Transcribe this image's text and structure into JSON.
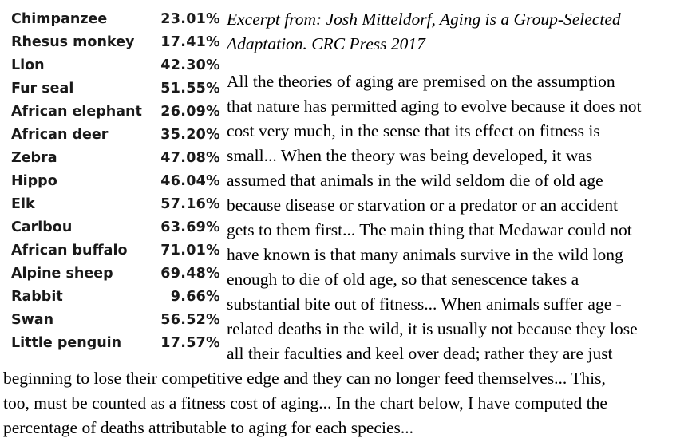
{
  "species_table": [
    {
      "name": "Chimpanzee",
      "percent": "23.01%"
    },
    {
      "name": "Rhesus monkey",
      "percent": "17.41%"
    },
    {
      "name": "Lion",
      "percent": "42.30%"
    },
    {
      "name": "Fur seal",
      "percent": "51.55%"
    },
    {
      "name": "African elephant",
      "percent": "26.09%"
    },
    {
      "name": "African deer",
      "percent": "35.20%"
    },
    {
      "name": "Zebra",
      "percent": "47.08%"
    },
    {
      "name": "Hippo",
      "percent": "46.04%"
    },
    {
      "name": "Elk",
      "percent": "57.16%"
    },
    {
      "name": "Caribou",
      "percent": "63.69%"
    },
    {
      "name": "African buffalo",
      "percent": "71.01%"
    },
    {
      "name": "Alpine sheep",
      "percent": "69.48%"
    },
    {
      "name": "Rabbit",
      "percent": "9.66%"
    },
    {
      "name": "Swan",
      "percent": "56.52%"
    },
    {
      "name": "Little penguin",
      "percent": "17.57%"
    }
  ],
  "citation": "Excerpt from: Josh Mitteldorf, Aging is a Group-Selected Adaptation. CRC Press 2017",
  "excerpt_lines": [
    "All the theories of aging are premised on the assumption",
    "that nature has permitted aging to evolve because it does not",
    "cost very much, in the sense that its effect on fitness is",
    "small... When the theory was being developed, it was",
    "assumed that animals in the wild seldom die of old age",
    "because disease or starvation or a predator or an accident",
    "gets to them first... The main thing that Medawar could not",
    "have known is that many animals survive in the wild long",
    "enough to die of old age, so that senescence takes a",
    "substantial bite out of fitness... When animals suffer age -",
    "related deaths in the wild, it is usually not because they lose",
    "all their faculties and keel over dead; rather they are just",
    "beginning to lose their competitive edge and they can no longer feed themselves... This,",
    "too, must be counted as a fitness cost of aging... In the chart below, I have computed the",
    "percentage of deaths attributable to aging for each species..."
  ]
}
